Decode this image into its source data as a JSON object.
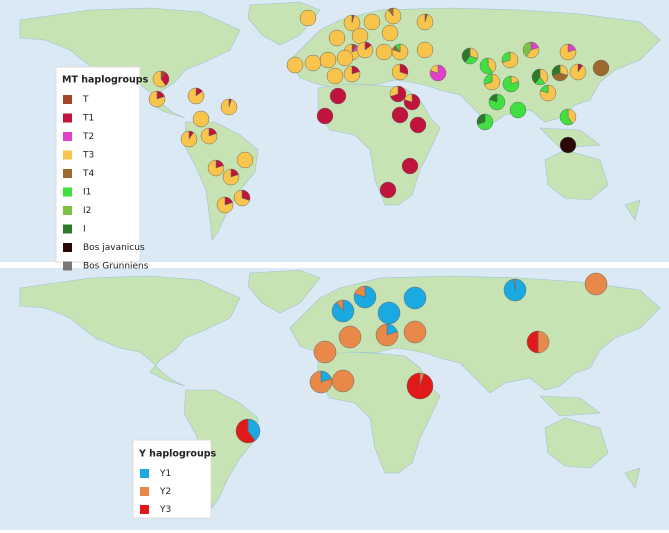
{
  "mt_legend": {
    "title": "MT haplogroups",
    "items": [
      {
        "label": "T",
        "color": "#a8432c"
      },
      {
        "label": "T1",
        "color": "#c0143c"
      },
      {
        "label": "T2",
        "color": "#e040c8"
      },
      {
        "label": "T3",
        "color": "#f8c44c"
      },
      {
        "label": "T4",
        "color": "#9c6a2e"
      },
      {
        "label": "I1",
        "color": "#3fe03f"
      },
      {
        "label": "I2",
        "color": "#7cc242"
      },
      {
        "label": "I",
        "color": "#2a7a2a"
      },
      {
        "label": "Bos javanicus",
        "color": "#2a0808"
      },
      {
        "label": "Bos Grunniens",
        "color": "#777777"
      }
    ]
  },
  "mt_pies": [
    {
      "shares": [
        0,
        0,
        0,
        100,
        0,
        0,
        0,
        0,
        0,
        0
      ]
    },
    {
      "shares": [
        5,
        0,
        0,
        95,
        0,
        0,
        0,
        0,
        0,
        0
      ]
    },
    {
      "shares": [
        0,
        0,
        0,
        100,
        0,
        0,
        0,
        0,
        0,
        0
      ]
    },
    {
      "shares": [
        0,
        0,
        0,
        90,
        10,
        0,
        0,
        0,
        0,
        0
      ]
    },
    {
      "shares": [
        5,
        0,
        0,
        95,
        0,
        0,
        0,
        0,
        0,
        0
      ]
    },
    {
      "shares": [
        0,
        0,
        0,
        100,
        0,
        0,
        0,
        0,
        0,
        0
      ]
    },
    {
      "shares": [
        0,
        0,
        0,
        100,
        0,
        0,
        0,
        0,
        0,
        0
      ]
    },
    {
      "shares": [
        0,
        0,
        0,
        100,
        0,
        0,
        0,
        0,
        0,
        0
      ]
    },
    {
      "shares": [
        10,
        0,
        10,
        80,
        0,
        0,
        0,
        0,
        0,
        0
      ]
    },
    {
      "shares": [
        0,
        15,
        0,
        85,
        0,
        0,
        0,
        0,
        0,
        0
      ]
    },
    {
      "shares": [
        0,
        0,
        0,
        100,
        0,
        0,
        0,
        0,
        0,
        0
      ]
    },
    {
      "shares": [
        0,
        0,
        0,
        80,
        10,
        10,
        0,
        0,
        0,
        0
      ]
    },
    {
      "shares": [
        0,
        0,
        0,
        100,
        0,
        0,
        0,
        0,
        0,
        0
      ]
    },
    {
      "shares": [
        0,
        0,
        0,
        100,
        0,
        0,
        0,
        0,
        0,
        0
      ]
    },
    {
      "shares": [
        0,
        0,
        0,
        100,
        0,
        0,
        0,
        0,
        0,
        0
      ]
    },
    {
      "shares": [
        0,
        0,
        0,
        100,
        0,
        0,
        0,
        0,
        0,
        0
      ]
    },
    {
      "shares": [
        0,
        0,
        0,
        100,
        0,
        0,
        0,
        0,
        0,
        0
      ]
    },
    {
      "shares": [
        0,
        20,
        0,
        80,
        0,
        0,
        0,
        0,
        0,
        0
      ]
    },
    {
      "shares": [
        0,
        0,
        0,
        100,
        0,
        0,
        0,
        0,
        0,
        0
      ]
    },
    {
      "shares": [
        0,
        30,
        0,
        70,
        0,
        0,
        0,
        0,
        0,
        0
      ]
    },
    {
      "shares": [
        0,
        0,
        80,
        20,
        0,
        0,
        0,
        0,
        0,
        0
      ]
    },
    {
      "shares": [
        0,
        100,
        0,
        0,
        0,
        0,
        0,
        0,
        0,
        0
      ]
    },
    {
      "shares": [
        0,
        100,
        0,
        0,
        0,
        0,
        0,
        0,
        0,
        0
      ]
    },
    {
      "shares": [
        0,
        70,
        0,
        30,
        0,
        0,
        0,
        0,
        0,
        0
      ]
    },
    {
      "shares": [
        0,
        80,
        0,
        20,
        0,
        0,
        0,
        0,
        0,
        0
      ]
    },
    {
      "shares": [
        0,
        100,
        0,
        0,
        0,
        0,
        0,
        0,
        0,
        0
      ]
    },
    {
      "shares": [
        0,
        100,
        0,
        0,
        0,
        0,
        0,
        0,
        0,
        0
      ]
    },
    {
      "shares": [
        0,
        100,
        0,
        0,
        0,
        0,
        0,
        0,
        0,
        0
      ]
    },
    {
      "shares": [
        0,
        100,
        0,
        0,
        0,
        0,
        0,
        0,
        0,
        0
      ]
    },
    {
      "shares": [
        0,
        0,
        0,
        30,
        0,
        30,
        0,
        40,
        0,
        0
      ]
    },
    {
      "shares": [
        0,
        0,
        0,
        40,
        0,
        60,
        0,
        0,
        0,
        0
      ]
    },
    {
      "shares": [
        0,
        0,
        0,
        70,
        0,
        30,
        0,
        0,
        0,
        0
      ]
    },
    {
      "shares": [
        0,
        0,
        20,
        40,
        0,
        0,
        40,
        0,
        0,
        0
      ]
    },
    {
      "shares": [
        0,
        0,
        20,
        80,
        0,
        0,
        0,
        0,
        0,
        0
      ]
    },
    {
      "shares": [
        0,
        0,
        0,
        70,
        0,
        30,
        0,
        0,
        0,
        0
      ]
    },
    {
      "shares": [
        0,
        0,
        0,
        20,
        0,
        80,
        0,
        0,
        0,
        0
      ]
    },
    {
      "shares": [
        0,
        0,
        0,
        0,
        0,
        80,
        0,
        20,
        0,
        0
      ]
    },
    {
      "shares": [
        0,
        0,
        0,
        0,
        0,
        100,
        0,
        0,
        0,
        0
      ]
    },
    {
      "shares": [
        0,
        0,
        0,
        40,
        0,
        20,
        0,
        40,
        0,
        0
      ]
    },
    {
      "shares": [
        0,
        0,
        0,
        80,
        0,
        20,
        0,
        0,
        0,
        0
      ]
    },
    {
      "shares": [
        0,
        0,
        0,
        30,
        40,
        0,
        0,
        30,
        0,
        0
      ]
    },
    {
      "shares": [
        0,
        10,
        0,
        90,
        0,
        0,
        0,
        0,
        0,
        0
      ]
    },
    {
      "shares": [
        0,
        0,
        0,
        0,
        100,
        0,
        0,
        0,
        0,
        0
      ]
    },
    {
      "shares": [
        0,
        0,
        0,
        0,
        0,
        70,
        0,
        30,
        0,
        0
      ]
    },
    {
      "shares": [
        0,
        0,
        0,
        40,
        0,
        60,
        0,
        0,
        0,
        0
      ]
    },
    {
      "shares": [
        0,
        0,
        0,
        0,
        0,
        0,
        0,
        0,
        100,
        0
      ]
    },
    {
      "shares": [
        10,
        30,
        0,
        60,
        0,
        0,
        0,
        0,
        0,
        0
      ]
    },
    {
      "shares": [
        0,
        20,
        0,
        80,
        0,
        0,
        0,
        0,
        0,
        0
      ]
    },
    {
      "shares": [
        0,
        15,
        0,
        85,
        0,
        0,
        0,
        0,
        0,
        0
      ]
    },
    {
      "shares": [
        0,
        5,
        0,
        95,
        0,
        0,
        0,
        0,
        0,
        0
      ]
    },
    {
      "shares": [
        0,
        10,
        0,
        90,
        0,
        0,
        0,
        0,
        0,
        0
      ]
    },
    {
      "shares": [
        0,
        20,
        0,
        80,
        0,
        0,
        0,
        0,
        0,
        0
      ]
    },
    {
      "shares": [
        0,
        0,
        0,
        100,
        0,
        0,
        0,
        0,
        0,
        0
      ]
    },
    {
      "shares": [
        0,
        20,
        0,
        80,
        0,
        0,
        0,
        0,
        0,
        0
      ]
    },
    {
      "shares": [
        0,
        0,
        0,
        100,
        0,
        0,
        0,
        0,
        0,
        0
      ]
    },
    {
      "shares": [
        0,
        20,
        0,
        80,
        0,
        0,
        0,
        0,
        0,
        0
      ]
    },
    {
      "shares": [
        0,
        20,
        0,
        80,
        0,
        0,
        0,
        0,
        0,
        0
      ]
    },
    {
      "shares": [
        0,
        30,
        0,
        70,
        0,
        0,
        0,
        0,
        0,
        0
      ]
    }
  ],
  "y_legend": {
    "title": "Y  haplogroups",
    "items": [
      {
        "label": "Y1",
        "color": "#1ba9e1"
      },
      {
        "label": "Y2",
        "color": "#e8894a"
      },
      {
        "label": "Y3",
        "color": "#e01a1a"
      }
    ]
  },
  "y_pies": [
    {
      "shares": [
        98,
        2,
        0
      ]
    },
    {
      "shares": [
        0,
        100,
        0
      ]
    },
    {
      "shares": [
        100,
        0,
        0
      ]
    },
    {
      "shares": [
        80,
        20,
        0
      ]
    },
    {
      "shares": [
        90,
        10,
        0
      ]
    },
    {
      "shares": [
        100,
        0,
        0
      ]
    },
    {
      "shares": [
        0,
        100,
        0
      ]
    },
    {
      "shares": [
        20,
        80,
        0
      ]
    },
    {
      "shares": [
        0,
        100,
        0
      ]
    },
    {
      "shares": [
        0,
        100,
        0
      ]
    },
    {
      "shares": [
        20,
        80,
        0
      ]
    },
    {
      "shares": [
        0,
        100,
        0
      ]
    },
    {
      "shares": [
        0,
        5,
        95
      ]
    },
    {
      "shares": [
        0,
        50,
        50
      ]
    },
    {
      "shares": [
        40,
        0,
        60
      ]
    }
  ]
}
